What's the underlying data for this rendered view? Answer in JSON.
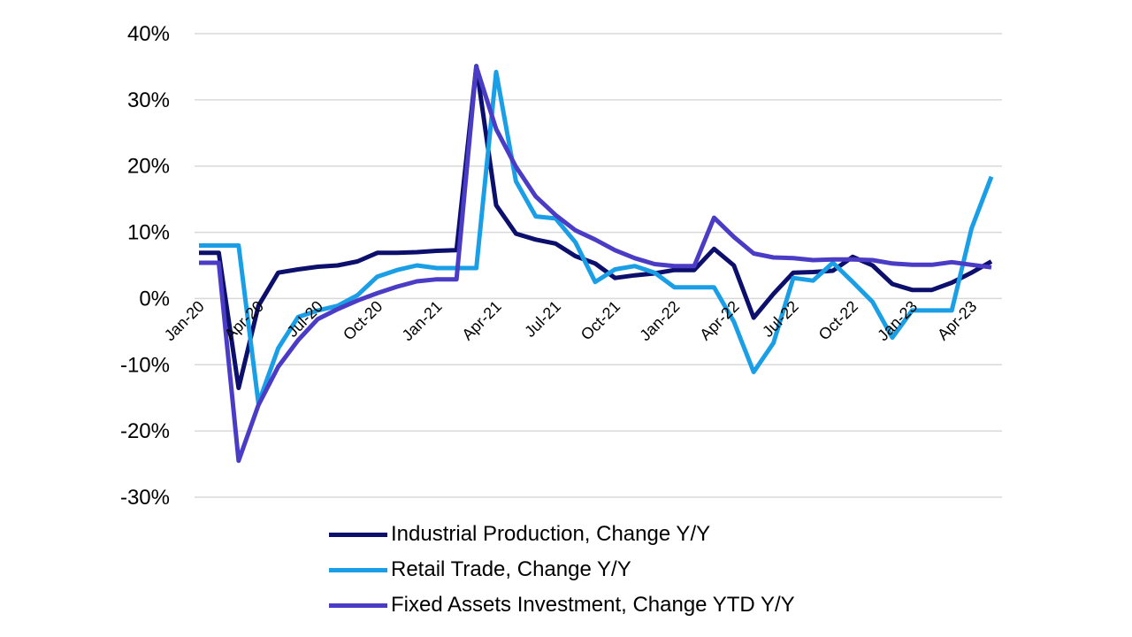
{
  "chart_data": {
    "type": "line",
    "yaxis": {
      "min": -30,
      "max": 40,
      "step": 10,
      "tick_format": "percent"
    },
    "ylim": [
      -30,
      40
    ],
    "grid": "horizontal",
    "legend_placement": "bottom",
    "x_labels": [
      "Jan-20",
      "Apr-20",
      "Jul-20",
      "Oct-20",
      "Jan-21",
      "Apr-21",
      "Jul-21",
      "Oct-21",
      "Jan-22",
      "Apr-22",
      "Jul-22",
      "Oct-22",
      "Jan-23",
      "Apr-23"
    ],
    "months": [
      "Jan-20",
      "Feb-20",
      "Mar-20",
      "Apr-20",
      "May-20",
      "Jun-20",
      "Jul-20",
      "Aug-20",
      "Sep-20",
      "Oct-20",
      "Nov-20",
      "Dec-20",
      "Jan-21",
      "Feb-21",
      "Mar-21",
      "Apr-21",
      "May-21",
      "Jun-21",
      "Jul-21",
      "Aug-21",
      "Sep-21",
      "Oct-21",
      "Nov-21",
      "Dec-21",
      "Jan-22",
      "Feb-22",
      "Mar-22",
      "Apr-22",
      "May-22",
      "Jun-22",
      "Jul-22",
      "Aug-22",
      "Sep-22",
      "Oct-22",
      "Nov-22",
      "Dec-22",
      "Jan-23",
      "Feb-23",
      "Mar-23",
      "Apr-23",
      "May-23"
    ],
    "series": [
      {
        "name": "Industrial Production, Change Y/Y",
        "color": "#0c0f6b",
        "values": [
          6.9,
          6.9,
          -13.5,
          -1.1,
          3.9,
          4.4,
          4.8,
          5.0,
          5.6,
          6.9,
          6.9,
          7.0,
          7.2,
          7.3,
          35.1,
          14.1,
          9.8,
          8.9,
          8.3,
          6.4,
          5.3,
          3.1,
          3.5,
          3.8,
          4.3,
          4.3,
          7.5,
          5.0,
          -2.9,
          0.7,
          3.9,
          4.0,
          4.2,
          6.3,
          5.0,
          2.2,
          1.3,
          1.3,
          2.4,
          3.9,
          5.6
        ]
      },
      {
        "name": "Retail Trade, Change Y/Y",
        "color": "#1a9fe6",
        "values": [
          8.0,
          8.0,
          8.0,
          -15.8,
          -7.5,
          -2.8,
          -1.8,
          -1.1,
          0.5,
          3.3,
          4.3,
          5.0,
          4.6,
          4.6,
          4.6,
          34.2,
          17.7,
          12.4,
          12.1,
          8.5,
          2.5,
          4.4,
          4.9,
          3.9,
          1.7,
          1.7,
          1.7,
          -3.5,
          -11.1,
          -6.7,
          3.1,
          2.7,
          5.4,
          2.5,
          -0.5,
          -5.9,
          -1.8,
          -1.8,
          -1.8,
          10.6,
          18.4
        ]
      },
      {
        "name": "Fixed Assets Investment, Change YTD Y/Y",
        "color": "#4b3cc6",
        "values": [
          5.4,
          5.4,
          -24.5,
          -16.1,
          -10.3,
          -6.3,
          -3.1,
          -1.6,
          -0.3,
          0.8,
          1.8,
          2.6,
          2.9,
          2.9,
          35.0,
          25.6,
          19.9,
          15.4,
          12.6,
          10.3,
          8.9,
          7.3,
          6.1,
          5.2,
          4.9,
          4.9,
          12.2,
          9.3,
          6.8,
          6.2,
          6.1,
          5.8,
          5.9,
          5.9,
          5.8,
          5.3,
          5.1,
          5.1,
          5.5,
          5.1,
          4.7
        ]
      }
    ]
  }
}
